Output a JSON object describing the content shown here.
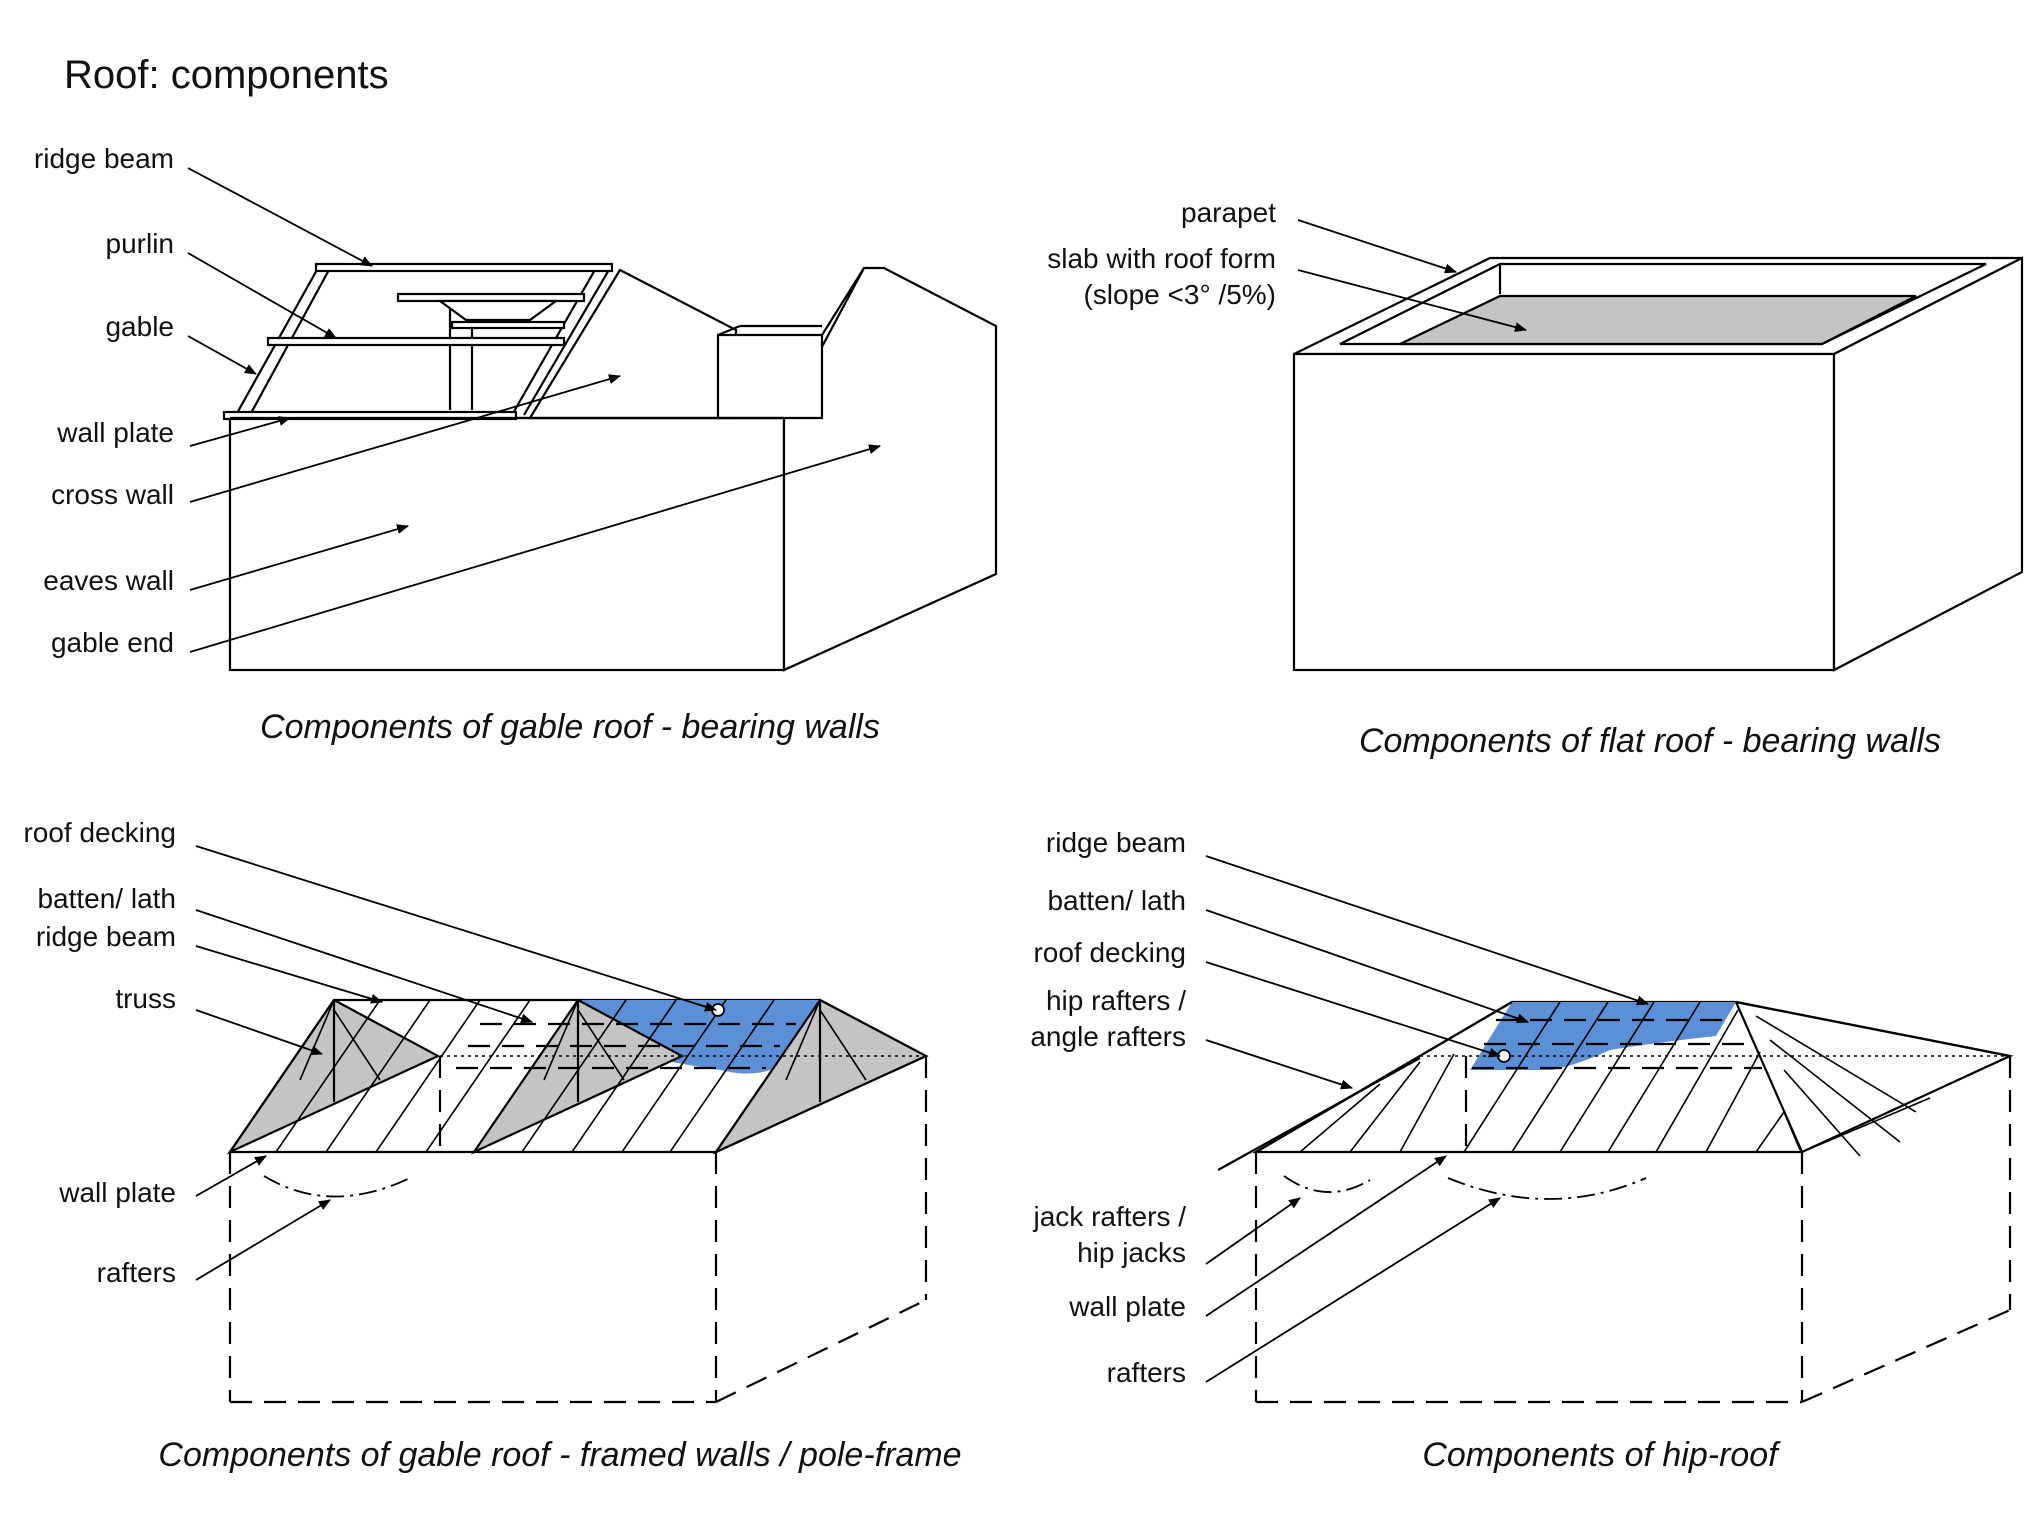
{
  "title": "Roof: components",
  "colors": {
    "line": "#000000",
    "grey": "#c4c4c4",
    "blue": "#5b8fd6"
  },
  "gable_bearing": {
    "labels": {
      "ridge_beam": "ridge beam",
      "purlin": "purlin",
      "gable": "gable",
      "wall_plate": "wall plate",
      "cross_wall": "cross wall",
      "eaves_wall": "eaves wall",
      "gable_end": "gable end"
    },
    "caption": "Components of gable roof - bearing walls"
  },
  "flat_bearing": {
    "labels": {
      "parapet": "parapet",
      "slab_line1": "slab with roof form",
      "slab_line2": "(slope <3° /5%)"
    },
    "caption": "Components of flat roof - bearing walls"
  },
  "gable_framed": {
    "labels": {
      "roof_decking": "roof decking",
      "batten_lath": "batten/ lath",
      "ridge_beam": "ridge beam",
      "truss": "truss",
      "wall_plate": "wall plate",
      "rafters": "rafters"
    },
    "caption": "Components of gable roof - framed walls / pole-frame"
  },
  "hip_roof": {
    "labels": {
      "ridge_beam": "ridge beam",
      "batten_lath": "batten/ lath",
      "roof_decking": "roof decking",
      "hip_line1": "hip rafters /",
      "hip_line2": "angle rafters",
      "jack_line1": "jack rafters /",
      "jack_line2": "hip jacks",
      "wall_plate": "wall plate",
      "rafters": "rafters"
    },
    "caption": "Components of hip-roof"
  }
}
